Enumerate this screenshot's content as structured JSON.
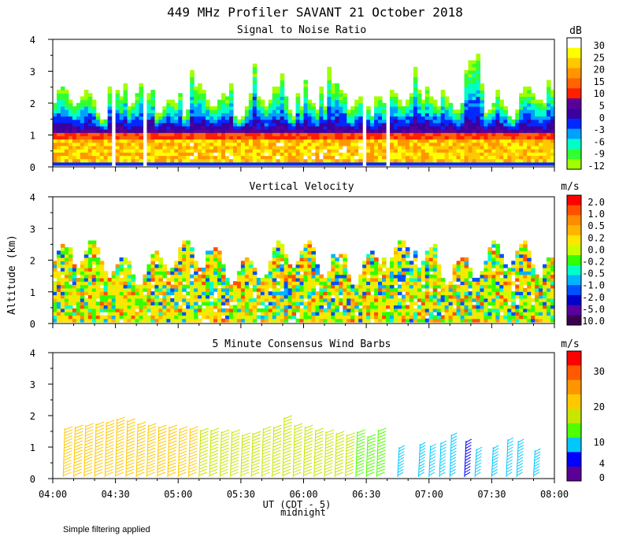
{
  "footer_note": "Simple filtering applied",
  "chart_data": {
    "title": "449 MHz Profiler SAVANT 21 October 2018",
    "shared_ylabel": "Altitude (km)",
    "shared_x": {
      "ticks": [
        "04:00",
        "04:30",
        "05:00",
        "05:30",
        "06:00",
        "06:30",
        "07:00",
        "07:30",
        "08:00"
      ],
      "xlabel": "UT (CDT - 5)",
      "midnight_label": "midnight",
      "range_minutes": [
        0,
        240
      ]
    },
    "panels": [
      {
        "type": "heatmap",
        "title": "Signal to Noise Ratio",
        "units": "dB",
        "ylim": [
          0,
          4
        ],
        "yticks": [
          "0",
          "1",
          "2",
          "3",
          "4"
        ],
        "colorbar_labels": [
          "30",
          "25",
          "20",
          "15",
          "10",
          "5",
          "0",
          "-3",
          "-6",
          "-9",
          "-12"
        ],
        "colorbar_colors": [
          "#ffffff",
          "#ffff00",
          "#ffc800",
          "#ff9600",
          "#ff6400",
          "#ff1e00",
          "#5a0096",
          "#3c00a0",
          "#0028ff",
          "#00a0ff",
          "#00ffc8",
          "#32ff32",
          "#a0ff00"
        ]
      },
      {
        "type": "heatmap",
        "title": "Vertical Velocity",
        "units": "m/s",
        "ylim": [
          0,
          4
        ],
        "yticks": [
          "0",
          "1",
          "2",
          "3",
          "4"
        ],
        "colorbar_labels": [
          "2.0",
          "1.0",
          "0.5",
          "0.2",
          "0.0",
          "-0.2",
          "-0.5",
          "-1.0",
          "-2.0",
          "-5.0",
          "-10.0"
        ],
        "colorbar_colors": [
          "#ff0000",
          "#ff5000",
          "#ff8c00",
          "#ffb400",
          "#ffe600",
          "#c8ff00",
          "#32ff00",
          "#00ffc8",
          "#00b4ff",
          "#0050ff",
          "#0000c8",
          "#5a00a0",
          "#3c0050"
        ]
      },
      {
        "type": "scatter",
        "title": "5 Minute Consensus Wind Barbs",
        "units": "m/s",
        "ylim": [
          0,
          4
        ],
        "yticks": [
          "0",
          "1",
          "2",
          "3",
          "4"
        ],
        "colorbar_labels": [
          "30",
          "20",
          "10",
          "4",
          "0"
        ],
        "colorbar_colors": [
          "#ff0000",
          "#ff5a00",
          "#ff9600",
          "#ffc800",
          "#c8e600",
          "#50ff00",
          "#00c8ff",
          "#0000ff",
          "#5a0096"
        ],
        "colorbar_label_positions": [
          30,
          20,
          10,
          4,
          0
        ],
        "barb_profiles": [
          {
            "t": 5,
            "top": 1.6,
            "speed": 17
          },
          {
            "t": 10,
            "top": 1.65,
            "speed": 17
          },
          {
            "t": 15,
            "top": 1.7,
            "speed": 17
          },
          {
            "t": 20,
            "top": 1.75,
            "speed": 17
          },
          {
            "t": 25,
            "top": 1.8,
            "speed": 17
          },
          {
            "t": 30,
            "top": 1.9,
            "speed": 18
          },
          {
            "t": 35,
            "top": 1.85,
            "speed": 17
          },
          {
            "t": 40,
            "top": 1.75,
            "speed": 17
          },
          {
            "t": 45,
            "top": 1.7,
            "speed": 17
          },
          {
            "t": 50,
            "top": 1.65,
            "speed": 17
          },
          {
            "t": 55,
            "top": 1.65,
            "speed": 17
          },
          {
            "t": 60,
            "top": 1.6,
            "speed": 17
          },
          {
            "t": 65,
            "top": 1.6,
            "speed": 17
          },
          {
            "t": 70,
            "top": 1.55,
            "speed": 16
          },
          {
            "t": 75,
            "top": 1.55,
            "speed": 16
          },
          {
            "t": 80,
            "top": 1.5,
            "speed": 16
          },
          {
            "t": 85,
            "top": 1.5,
            "speed": 16
          },
          {
            "t": 90,
            "top": 1.4,
            "speed": 16
          },
          {
            "t": 95,
            "top": 1.45,
            "speed": 16
          },
          {
            "t": 100,
            "top": 1.6,
            "speed": 16
          },
          {
            "t": 105,
            "top": 1.65,
            "speed": 15
          },
          {
            "t": 110,
            "top": 1.95,
            "speed": 14
          },
          {
            "t": 115,
            "top": 1.7,
            "speed": 14
          },
          {
            "t": 120,
            "top": 1.65,
            "speed": 15
          },
          {
            "t": 125,
            "top": 1.55,
            "speed": 15
          },
          {
            "t": 130,
            "top": 1.5,
            "speed": 15
          },
          {
            "t": 135,
            "top": 1.45,
            "speed": 14
          },
          {
            "t": 140,
            "top": 1.4,
            "speed": 14
          },
          {
            "t": 145,
            "top": 1.5,
            "speed": 13
          },
          {
            "t": 150,
            "top": 1.35,
            "speed": 13
          },
          {
            "t": 155,
            "top": 1.55,
            "speed": 13
          },
          {
            "t": 165,
            "top": 1.0,
            "speed": 9
          },
          {
            "t": 175,
            "top": 1.1,
            "speed": 9
          },
          {
            "t": 180,
            "top": 1.05,
            "speed": 9
          },
          {
            "t": 185,
            "top": 1.15,
            "speed": 9
          },
          {
            "t": 190,
            "top": 1.4,
            "speed": 8
          },
          {
            "t": 197,
            "top": 1.2,
            "speed": 3
          },
          {
            "t": 202,
            "top": 0.95,
            "speed": 8
          },
          {
            "t": 210,
            "top": 1.0,
            "speed": 8
          },
          {
            "t": 217,
            "top": 1.25,
            "speed": 7
          },
          {
            "t": 222,
            "top": 1.2,
            "speed": 7
          },
          {
            "t": 230,
            "top": 0.9,
            "speed": 8
          }
        ]
      }
    ]
  }
}
